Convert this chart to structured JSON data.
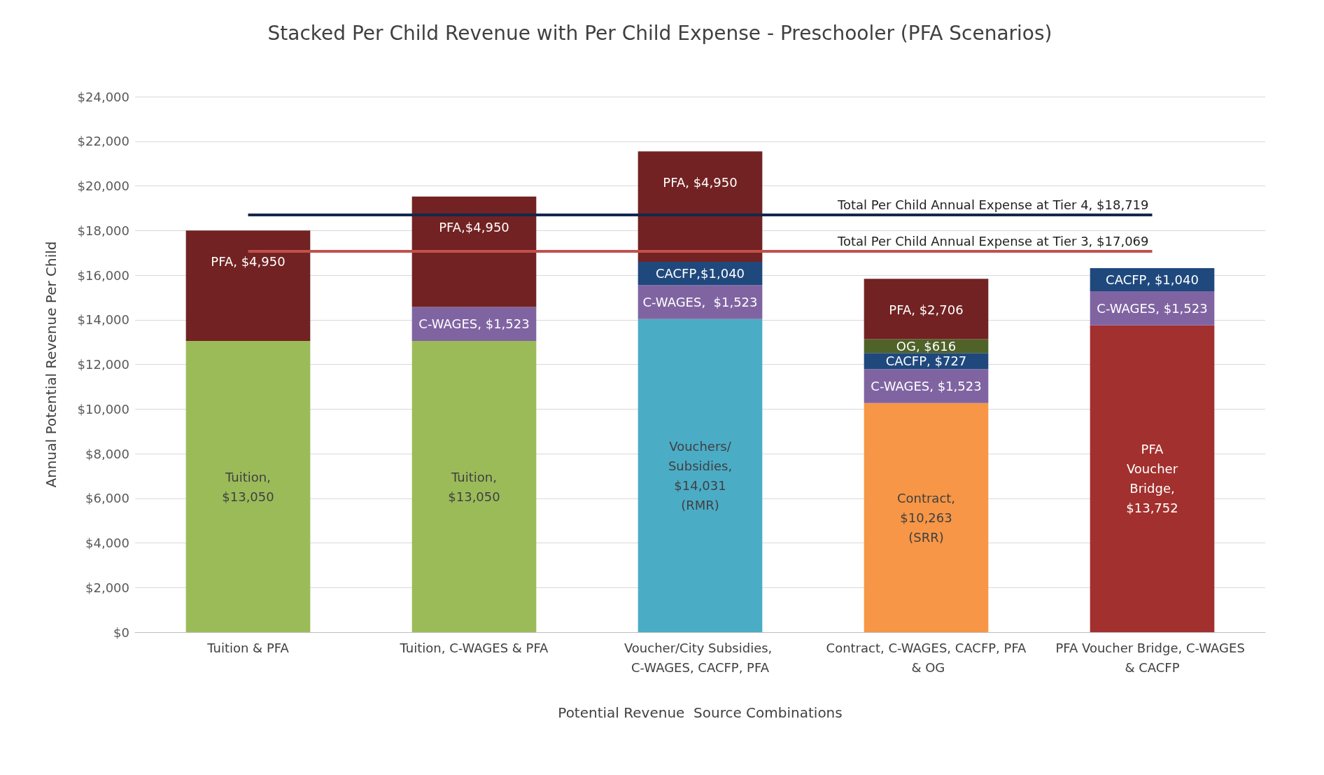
{
  "chart_data": {
    "type": "bar",
    "title": "Stacked Per Child Revenue with Per Child Expense - Preschooler (PFA Scenarios)",
    "xlabel": "Potential Revenue  Source Combinations",
    "ylabel": "Annual Potential Revenue Per Child",
    "categories": [
      "Tuition & PFA",
      "Tuition, C-WAGES & PFA",
      "Voucher/City Subsidies, C-WAGES, CACFP, PFA",
      "Contract, C-WAGES, CACFP, PFA & OG",
      "PFA Voucher Bridge, C-WAGES & CACFP"
    ],
    "stacked": true,
    "series": [
      {
        "color": "#9bbb59",
        "values": [
          13050,
          13050,
          null,
          null,
          null
        ],
        "value_labels": [
          "Tuition,\n$13,050",
          "Tuition,\n$13,050",
          null,
          null,
          null
        ]
      },
      {
        "color": "#4bacc6",
        "values": [
          null,
          null,
          14031,
          null,
          null
        ],
        "value_labels": [
          null,
          null,
          "Vouchers/\nSubsidies,\n$14,031\n(RMR)",
          null,
          null
        ]
      },
      {
        "color": "#f79646",
        "values": [
          null,
          null,
          null,
          10263,
          null
        ],
        "value_labels": [
          null,
          null,
          null,
          "Contract,\n$10,263\n(SRR)",
          null
        ]
      },
      {
        "color": "#a2302e",
        "values": [
          null,
          null,
          null,
          null,
          13752
        ],
        "value_labels": [
          null,
          null,
          null,
          null,
          "PFA\nVoucher\nBridge,\n$13,752"
        ]
      },
      {
        "color": "#8064a2",
        "values": [
          null,
          1523,
          1523,
          1523,
          1523
        ],
        "value_labels": [
          null,
          "C-WAGES, $1,523",
          "C-WAGES,  $1,523",
          "C-WAGES, $1,523",
          "C-WAGES, $1,523"
        ]
      },
      {
        "color": "#1f497d",
        "values": [
          null,
          null,
          1040,
          727,
          1040
        ],
        "value_labels": [
          null,
          null,
          "CACFP,$1,040",
          "CACFP, $727",
          "CACFP, $1,040"
        ]
      },
      {
        "color": "#4f6228",
        "values": [
          null,
          null,
          null,
          616,
          null
        ],
        "value_labels": [
          null,
          null,
          null,
          "OG, $616",
          null
        ]
      },
      {
        "color": "#722222",
        "values": [
          4950,
          4950,
          4950,
          2706,
          null
        ],
        "value_labels": [
          "PFA, $4,950",
          "PFA,$4,950",
          "PFA, $4,950",
          "PFA, $2,706",
          null
        ]
      }
    ],
    "ylim": [
      0,
      24000
    ],
    "yticks": [
      {
        "value": 0,
        "label": "$0"
      },
      {
        "value": 2000,
        "label": "$2,000"
      },
      {
        "value": 4000,
        "label": "$4,000"
      },
      {
        "value": 6000,
        "label": "$6,000"
      },
      {
        "value": 8000,
        "label": "$8,000"
      },
      {
        "value": 10000,
        "label": "$10,000"
      },
      {
        "value": 12000,
        "label": "$12,000"
      },
      {
        "value": 14000,
        "label": "$14,000"
      },
      {
        "value": 16000,
        "label": "$16,000"
      },
      {
        "value": 18000,
        "label": "$18,000"
      },
      {
        "value": 20000,
        "label": "$20,000"
      },
      {
        "value": 22000,
        "label": "$22,000"
      },
      {
        "value": 24000,
        "label": "$24,000"
      }
    ],
    "ref_lines": [
      {
        "axis": "y",
        "value": 18719,
        "label": "Total Per Child Annual Expense at Tier 4, $18,719",
        "color": "#13294b"
      },
      {
        "axis": "y",
        "value": 17069,
        "label": "Total Per Child Annual Expense at Tier 3, $17,069",
        "color": "#c0504d"
      }
    ],
    "grid": "y"
  }
}
